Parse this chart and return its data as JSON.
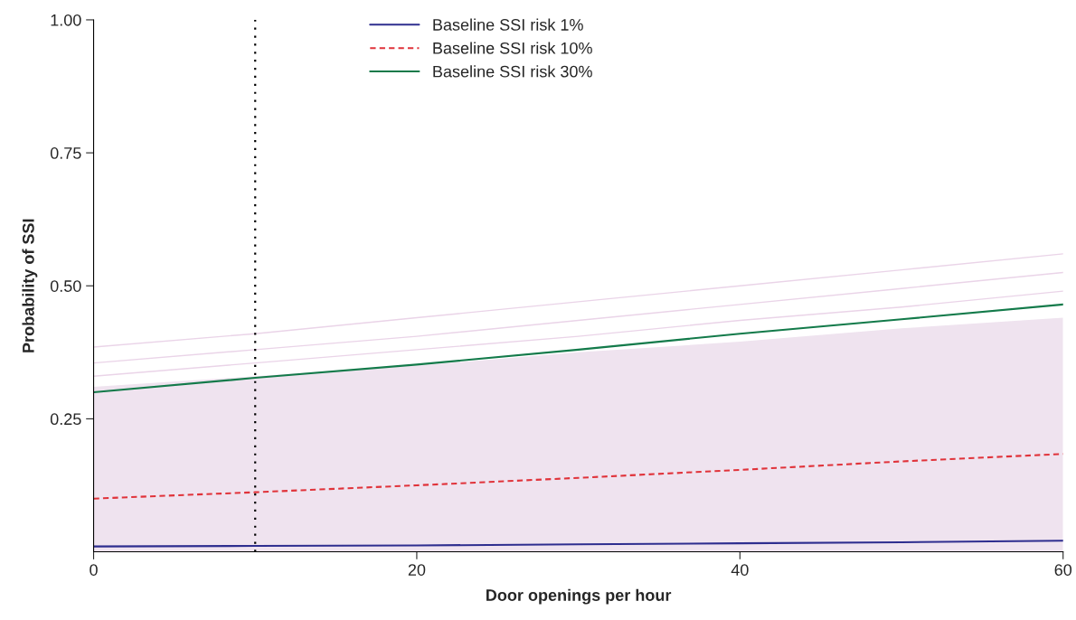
{
  "chart_data": {
    "type": "line",
    "xlabel": "Door openings per hour",
    "ylabel": "Probability of SSI",
    "x": [
      0,
      10,
      20,
      30,
      40,
      50,
      60
    ],
    "xlim": [
      0,
      60
    ],
    "xticks": [
      0,
      20,
      40,
      60
    ],
    "ylim": [
      0,
      1
    ],
    "yticks": [
      0.25,
      {
        "value": 0.5,
        "label": "0.50"
      },
      0.75,
      {
        "value": 1,
        "label": "1.00"
      }
    ],
    "grid": false,
    "legend": "top",
    "marker": "none",
    "ref_lines": [
      {
        "axis": "x",
        "value": 10,
        "color": "#000000",
        "line_style": "dotted"
      }
    ],
    "series": [
      {
        "type": "area",
        "color": "#efe3ef",
        "values": [
          0.31,
          0.33,
          0.35,
          0.375,
          0.395,
          0.42,
          0.44
        ]
      },
      {
        "color": "#ead4e8",
        "values": [
          0.385,
          0.41,
          0.44,
          0.47,
          0.5,
          0.53,
          0.56
        ]
      },
      {
        "color": "#ead4e8",
        "values": [
          0.355,
          0.38,
          0.405,
          0.435,
          0.465,
          0.495,
          0.525
        ]
      },
      {
        "color": "#ead4e8",
        "values": [
          0.33,
          0.355,
          0.38,
          0.405,
          0.435,
          0.46,
          0.49
        ]
      },
      {
        "name": "Baseline SSI risk 1%",
        "color": "#2e2e8f",
        "line_style": "solid",
        "values": [
          0.01,
          0.011,
          0.012,
          0.014,
          0.016,
          0.018,
          0.021
        ]
      },
      {
        "name": "Baseline SSI risk 10%",
        "color": "#e0333a",
        "line_style": "dashed",
        "values": [
          0.1,
          0.112,
          0.125,
          0.139,
          0.154,
          0.17,
          0.184
        ]
      },
      {
        "name": "Baseline SSI risk 30%",
        "color": "#137a4a",
        "line_style": "solid",
        "values": [
          0.3,
          0.327,
          0.352,
          0.38,
          0.41,
          0.437,
          0.465
        ]
      }
    ]
  }
}
